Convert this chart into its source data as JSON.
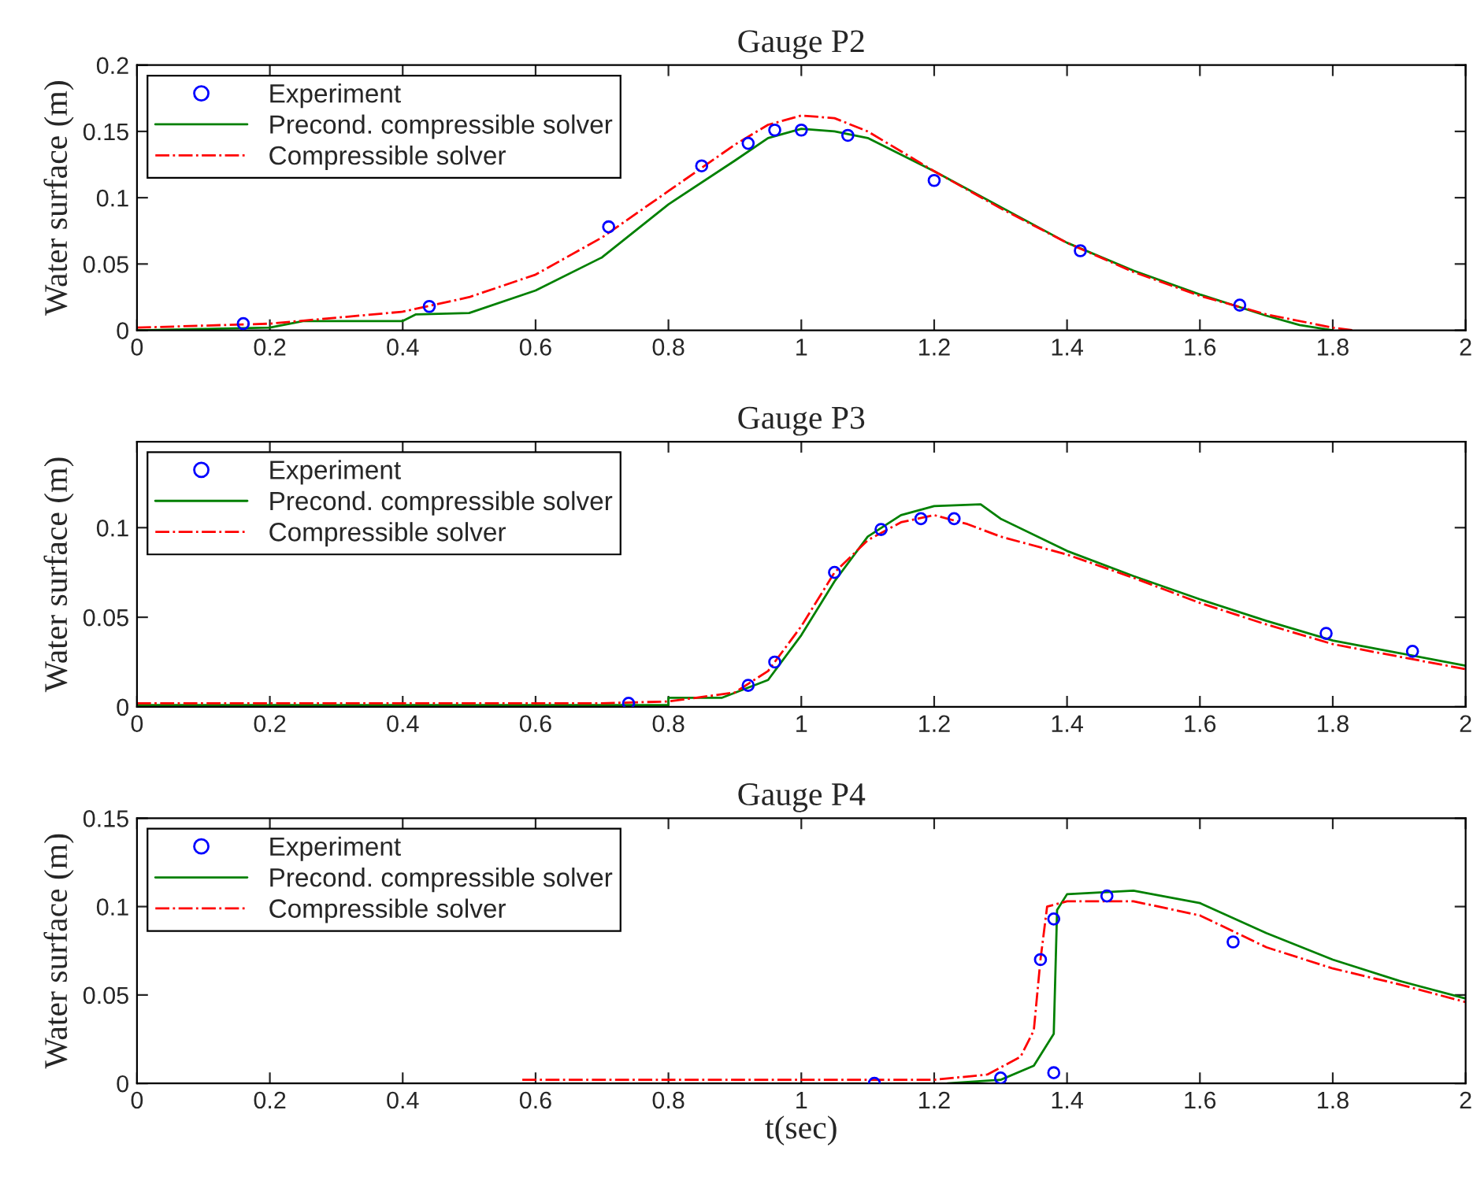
{
  "chart_data": [
    {
      "type": "line",
      "title": "Gauge P2",
      "ylabel": "Water surface (m)",
      "legend": "top left",
      "xlim": [
        0,
        2
      ],
      "xticks": [
        0,
        0.2,
        0.4,
        0.6,
        0.8,
        1,
        1.2,
        1.4,
        1.6,
        1.8,
        2
      ],
      "ylim": [
        0,
        0.2
      ],
      "yticks": [
        0,
        0.05,
        0.1,
        0.15,
        0.2
      ],
      "series": [
        {
          "name": "Experiment",
          "type": "scatter",
          "marker": "circle",
          "color": "#0000ff",
          "x": [
            0.16,
            0.44,
            0.71,
            0.85,
            0.92,
            0.96,
            1.0,
            1.07,
            1.2,
            1.42,
            1.66
          ],
          "values": [
            0.005,
            0.018,
            0.078,
            0.124,
            0.141,
            0.151,
            0.151,
            0.147,
            0.113,
            0.06,
            0.019
          ]
        },
        {
          "name": "Precond. compressible solver",
          "line_style": "solid",
          "color": "#008000",
          "x": [
            0,
            0.1,
            0.2,
            0.25,
            0.4,
            0.42,
            0.5,
            0.6,
            0.7,
            0.8,
            0.9,
            0.95,
            1.0,
            1.05,
            1.1,
            1.2,
            1.3,
            1.4,
            1.5,
            1.6,
            1.7,
            1.75,
            1.8
          ],
          "values": [
            0,
            0.001,
            0.002,
            0.007,
            0.007,
            0.012,
            0.013,
            0.03,
            0.055,
            0.095,
            0.128,
            0.145,
            0.152,
            0.15,
            0.145,
            0.12,
            0.093,
            0.066,
            0.045,
            0.027,
            0.011,
            0.004,
            0
          ]
        },
        {
          "name": "Compressible solver",
          "line_style": "dashdot",
          "color": "#ff0000",
          "x": [
            0,
            0.2,
            0.4,
            0.5,
            0.6,
            0.7,
            0.8,
            0.9,
            0.95,
            1.0,
            1.05,
            1.1,
            1.2,
            1.3,
            1.4,
            1.5,
            1.6,
            1.7,
            1.8,
            1.83
          ],
          "values": [
            0.002,
            0.005,
            0.014,
            0.025,
            0.042,
            0.07,
            0.105,
            0.14,
            0.155,
            0.162,
            0.16,
            0.15,
            0.12,
            0.092,
            0.066,
            0.044,
            0.026,
            0.012,
            0.002,
            0
          ]
        }
      ]
    },
    {
      "type": "line",
      "title": "Gauge P3",
      "ylabel": "Water surface (m)",
      "legend": "top left",
      "xlim": [
        0,
        2
      ],
      "xticks": [
        0,
        0.2,
        0.4,
        0.6,
        0.8,
        1,
        1.2,
        1.4,
        1.6,
        1.8,
        2
      ],
      "ylim": [
        0,
        0.148
      ],
      "yticks": [
        0,
        0.05,
        0.1
      ],
      "series": [
        {
          "name": "Experiment",
          "type": "scatter",
          "marker": "circle",
          "color": "#0000ff",
          "x": [
            0.74,
            0.92,
            0.96,
            1.05,
            1.12,
            1.18,
            1.23,
            1.79,
            1.92
          ],
          "values": [
            0.002,
            0.012,
            0.025,
            0.075,
            0.099,
            0.105,
            0.105,
            0.041,
            0.031
          ]
        },
        {
          "name": "Precond. compressible solver",
          "line_style": "solid",
          "color": "#008000",
          "x": [
            0,
            0.8,
            0.8,
            0.88,
            0.95,
            1.0,
            1.05,
            1.1,
            1.15,
            1.2,
            1.27,
            1.3,
            1.4,
            1.5,
            1.6,
            1.7,
            1.8,
            1.9,
            2.0
          ],
          "values": [
            0.001,
            0.001,
            0.005,
            0.005,
            0.015,
            0.04,
            0.07,
            0.095,
            0.107,
            0.112,
            0.113,
            0.105,
            0.087,
            0.073,
            0.06,
            0.048,
            0.037,
            0.03,
            0.023
          ]
        },
        {
          "name": "Compressible solver",
          "line_style": "dashdot",
          "color": "#ff0000",
          "x": [
            0,
            0.7,
            0.8,
            0.9,
            0.95,
            1.0,
            1.05,
            1.1,
            1.15,
            1.2,
            1.25,
            1.3,
            1.4,
            1.5,
            1.6,
            1.7,
            1.8,
            1.9,
            2.0
          ],
          "values": [
            0.002,
            0.002,
            0.003,
            0.008,
            0.02,
            0.045,
            0.075,
            0.093,
            0.103,
            0.107,
            0.102,
            0.095,
            0.085,
            0.072,
            0.058,
            0.046,
            0.035,
            0.028,
            0.021
          ]
        }
      ]
    },
    {
      "type": "line",
      "title": "Gauge P4",
      "ylabel": "Water surface (m)",
      "xlabel": "t(sec)",
      "legend": "top left",
      "xlim": [
        0,
        2
      ],
      "xticks": [
        0,
        0.2,
        0.4,
        0.6,
        0.8,
        1,
        1.2,
        1.4,
        1.6,
        1.8,
        2
      ],
      "ylim": [
        0,
        0.15
      ],
      "yticks": [
        0,
        0.05,
        0.1,
        0.15
      ],
      "series": [
        {
          "name": "Experiment",
          "type": "scatter",
          "marker": "circle",
          "color": "#0000ff",
          "x": [
            1.11,
            1.3,
            1.36,
            1.38,
            1.38,
            1.46,
            1.65
          ],
          "values": [
            0.0,
            0.003,
            0.07,
            0.093,
            0.006,
            0.106,
            0.08
          ]
        },
        {
          "name": "Precond. compressible solver",
          "line_style": "solid",
          "color": "#008000",
          "x": [
            1.22,
            1.3,
            1.35,
            1.38,
            1.385,
            1.4,
            1.5,
            1.6,
            1.7,
            1.8,
            1.9,
            2.0
          ],
          "values": [
            0,
            0.002,
            0.01,
            0.028,
            0.098,
            0.107,
            0.109,
            0.102,
            0.085,
            0.07,
            0.058,
            0.048
          ]
        },
        {
          "name": "Compressible solver",
          "line_style": "dashdot",
          "color": "#ff0000",
          "x": [
            0.58,
            1.0,
            1.2,
            1.28,
            1.33,
            1.35,
            1.36,
            1.37,
            1.4,
            1.5,
            1.6,
            1.7,
            1.8,
            1.9,
            2.0
          ],
          "values": [
            0.002,
            0.002,
            0.002,
            0.005,
            0.015,
            0.03,
            0.07,
            0.1,
            0.103,
            0.103,
            0.095,
            0.077,
            0.065,
            0.056,
            0.046
          ]
        }
      ]
    }
  ]
}
